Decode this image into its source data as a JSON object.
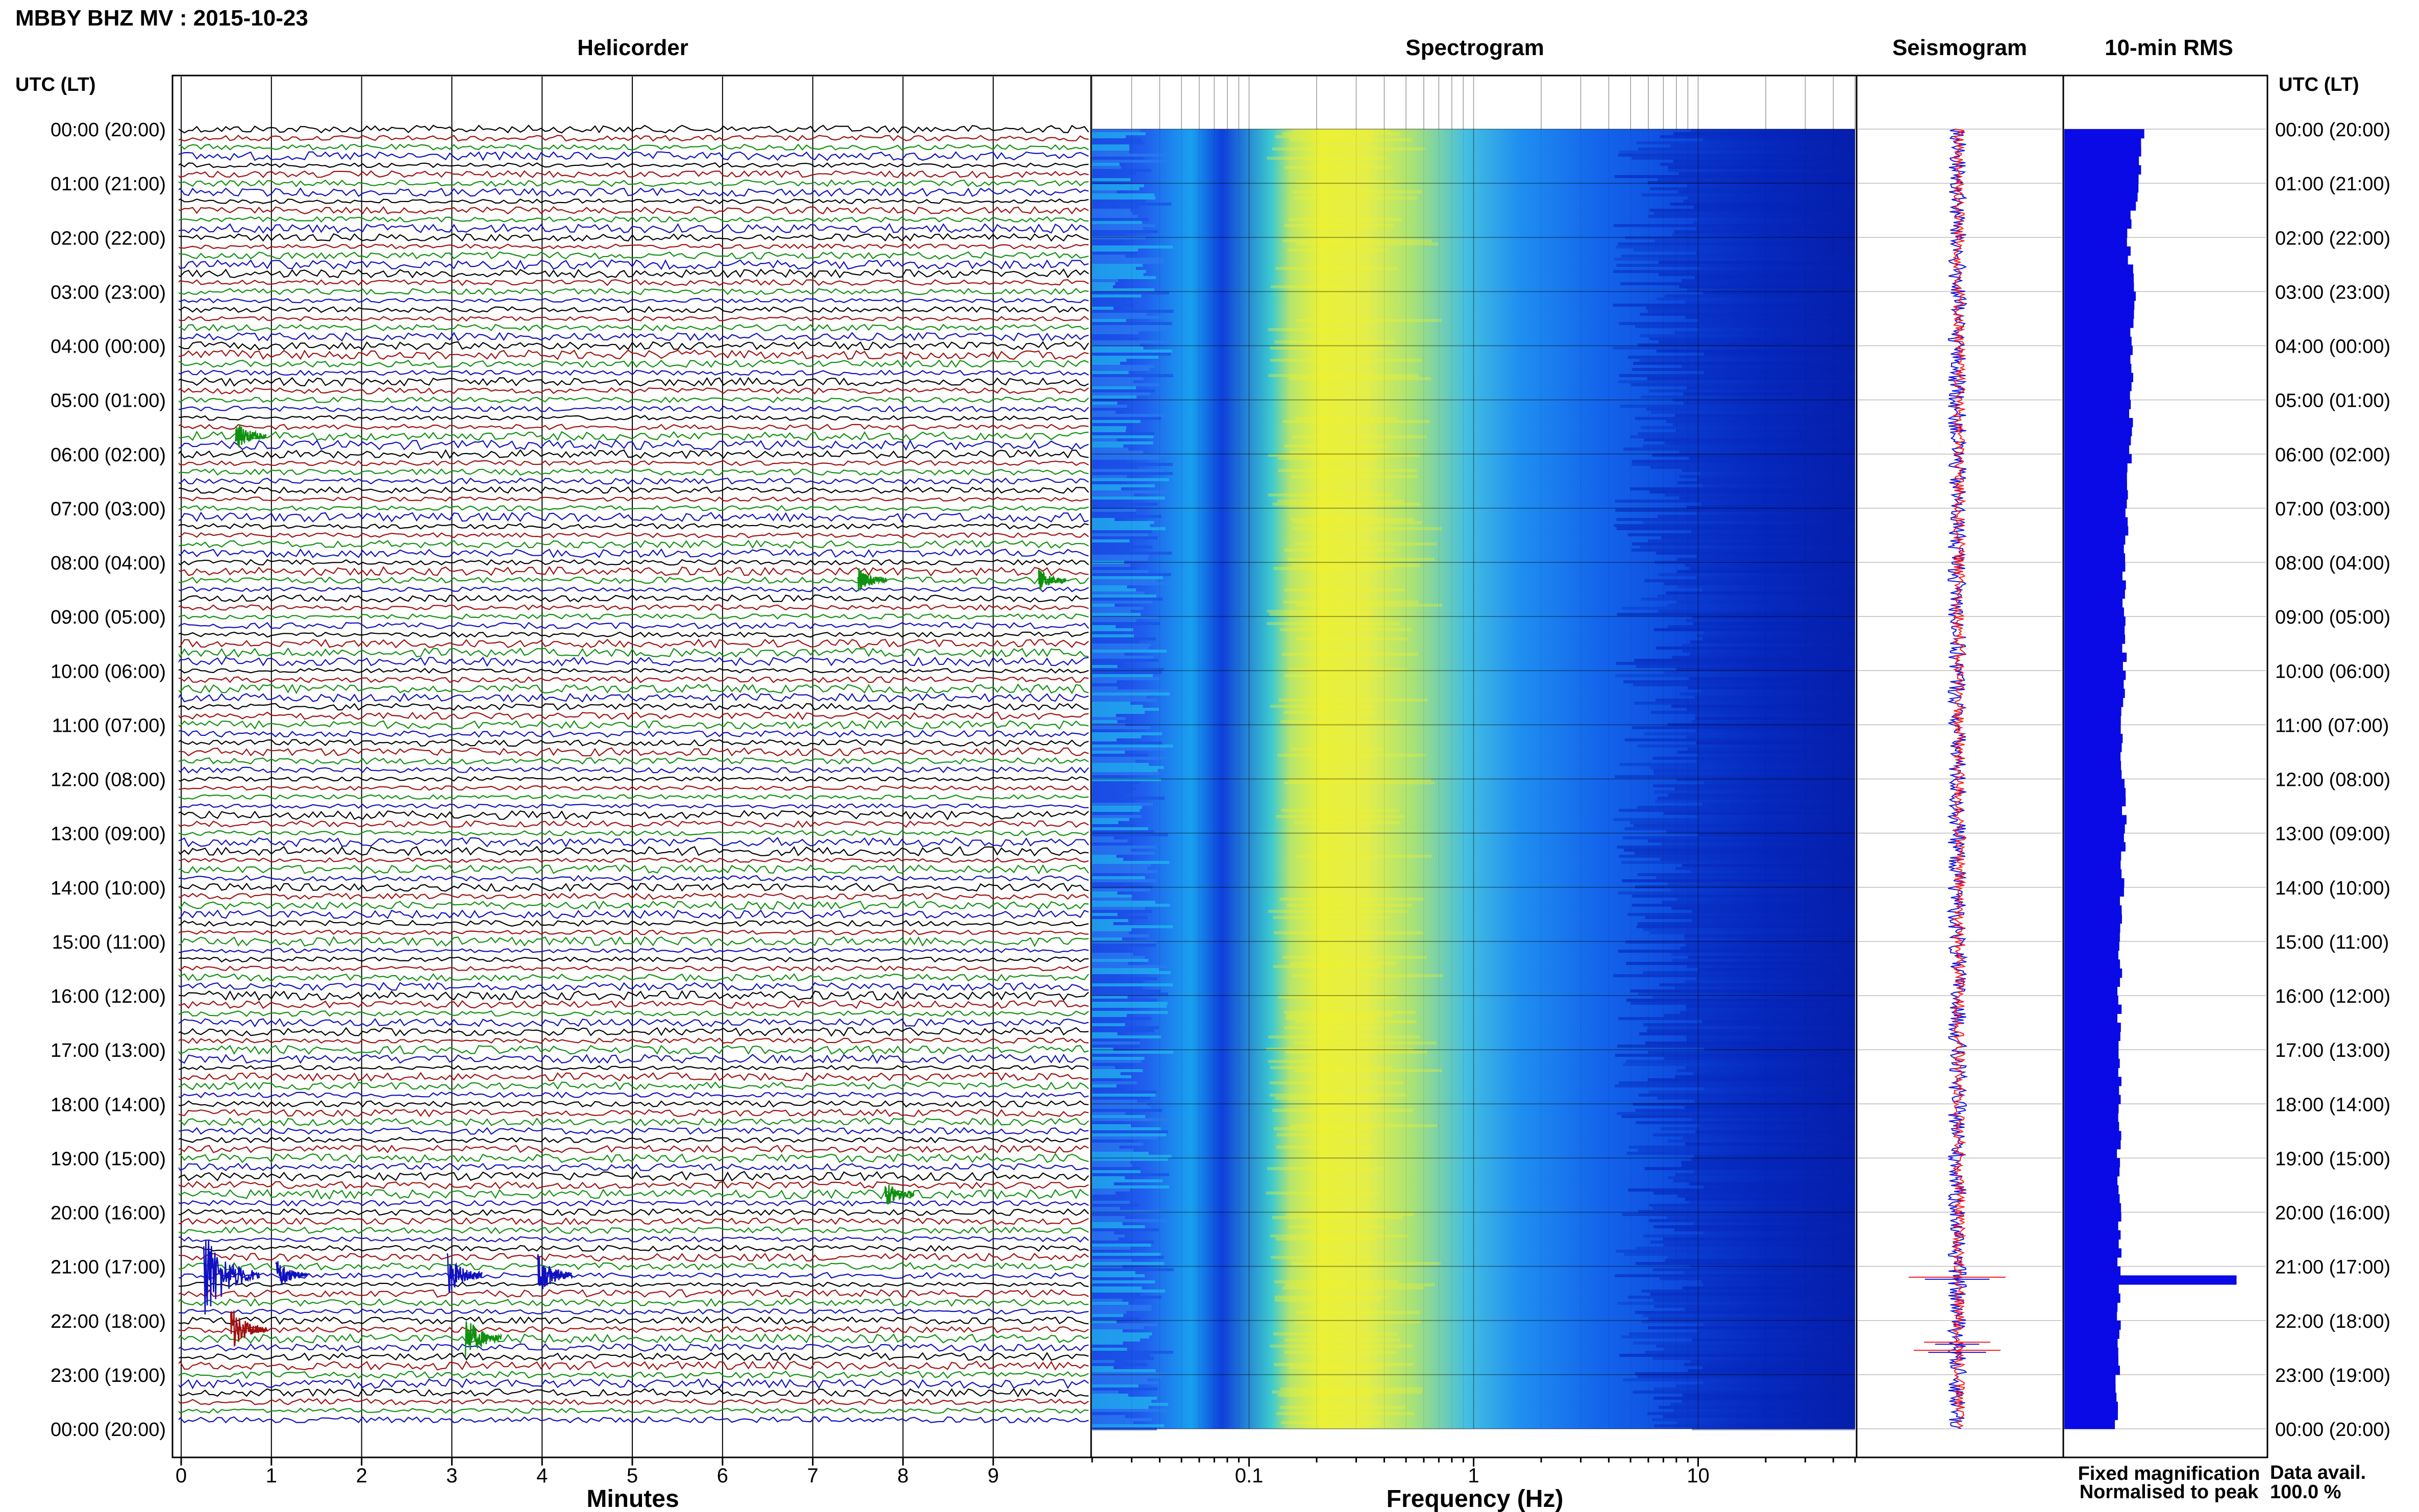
{
  "header": {
    "station_title": "MBBY BHZ MV : 2015-10-23",
    "time_axis_label": "UTC (LT)",
    "panel_titles": {
      "helicorder": "Helicorder",
      "spectrogram": "Spectrogram",
      "seismogram": "Seismogram",
      "rms": "10-min RMS"
    }
  },
  "footer": {
    "helicorder_xlabel": "Minutes",
    "spectrogram_xlabel": "Frequency (Hz)",
    "legend_fixed": "Fixed magnification",
    "legend_normalised": "Normalised to peak",
    "data_avail_label": "Data avail.",
    "data_avail_value": "100.0 %"
  },
  "colors": {
    "legend_fixed": "#1010e0",
    "legend_normalised": "#ff1a1a",
    "trace_palette": [
      "#000000",
      "#a01010",
      "#109010",
      "#1010c0"
    ],
    "rms_bar": "#0a0ae6",
    "grid": "#bdbdbd"
  },
  "chart_data": [
    {
      "type": "line",
      "name": "helicorder",
      "title": "Helicorder",
      "xlabel": "Minutes",
      "ylabel": "UTC (LT)",
      "x_ticks": [
        "0",
        "1",
        "2",
        "3",
        "4",
        "5",
        "6",
        "7",
        "8",
        "9"
      ],
      "xlim": [
        0,
        10
      ],
      "y_ticks": [
        "00:00 (20:00)",
        "01:00 (21:00)",
        "02:00 (22:00)",
        "03:00 (23:00)",
        "04:00 (00:00)",
        "05:00 (01:00)",
        "06:00 (02:00)",
        "07:00 (03:00)",
        "08:00 (04:00)",
        "09:00 (05:00)",
        "10:00 (06:00)",
        "11:00 (07:00)",
        "12:00 (08:00)",
        "13:00 (09:00)",
        "14:00 (10:00)",
        "15:00 (11:00)",
        "16:00 (12:00)",
        "17:00 (13:00)",
        "18:00 (14:00)",
        "19:00 (15:00)",
        "20:00 (16:00)",
        "21:00 (17:00)",
        "22:00 (18:00)",
        "23:00 (19:00)",
        "00:00 (20:00)"
      ],
      "lines_per_hour": 6,
      "events": [
        {
          "hour": 21.1,
          "minute": 0.25,
          "amplitude": 5
        },
        {
          "hour": 21.1,
          "minute": 1.05,
          "amplitude": 1.5
        },
        {
          "hour": 21.1,
          "minute": 2.95,
          "amplitude": 2
        },
        {
          "hour": 21.1,
          "minute": 3.95,
          "amplitude": 2
        },
        {
          "hour": 22.2,
          "minute": 0.55,
          "amplitude": 2.2
        },
        {
          "hour": 22.3,
          "minute": 3.15,
          "amplitude": 2.2
        },
        {
          "hour": 5.6,
          "minute": 0.6,
          "amplitude": 1.4
        },
        {
          "hour": 8.4,
          "minute": 7.5,
          "amplitude": 1.2
        },
        {
          "hour": 8.3,
          "minute": 9.5,
          "amplitude": 1.0
        },
        {
          "hour": 19.7,
          "minute": 7.8,
          "amplitude": 1.2
        }
      ]
    },
    {
      "type": "heatmap",
      "name": "spectrogram",
      "title": "Spectrogram",
      "xlabel": "Frequency (Hz)",
      "x_scale": "log",
      "xlim": [
        0.02,
        50
      ],
      "x_ticks": [
        "0.1",
        "1",
        "10"
      ],
      "colormap": "jet"
    },
    {
      "type": "line",
      "name": "seismogram",
      "title": "Seismogram",
      "series": [
        {
          "name": "Fixed magnification",
          "color": "#1010e0"
        },
        {
          "name": "Normalised to peak",
          "color": "#ff1a1a"
        }
      ]
    },
    {
      "type": "bar",
      "name": "10-min RMS",
      "title": "10-min RMS",
      "orientation": "horizontal",
      "hours_base": [
        12.5,
        11.5,
        10.0,
        11.0,
        10.5,
        10.5,
        10.2,
        9.8,
        9.5,
        9.2,
        9.5,
        9.0,
        9.3,
        9.4,
        9.0,
        8.8,
        8.6,
        8.9,
        8.7,
        8.4,
        8.8,
        8.5,
        8.6,
        8.4,
        8.2
      ],
      "spike_hour": 21.2,
      "spike_value": 27
    }
  ]
}
